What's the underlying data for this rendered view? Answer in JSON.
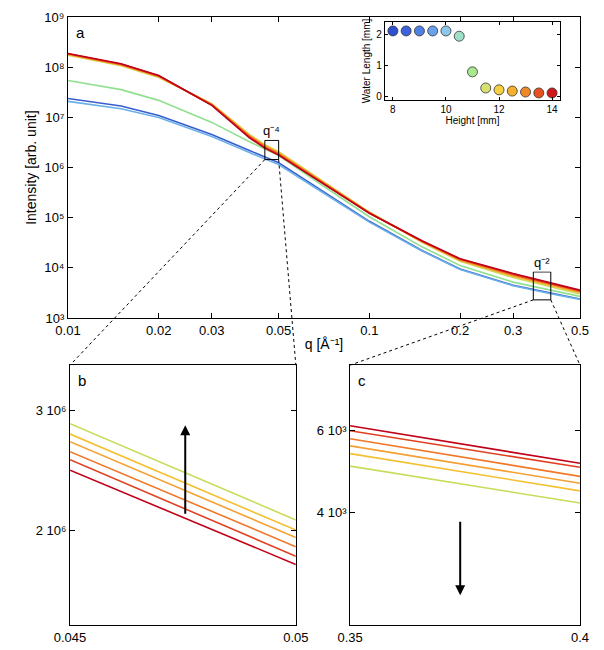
{
  "chart_data": [
    {
      "type": "line",
      "title": "a",
      "log": true,
      "x_label": "q [Å⁻¹]",
      "y_label": "Intensity [arb. unit]",
      "annotations": [
        "q⁻⁴",
        "q⁻²"
      ],
      "x": [
        0.01,
        0.015,
        0.02,
        0.03,
        0.04,
        0.045,
        0.05,
        0.07,
        0.1,
        0.15,
        0.2,
        0.3,
        0.35,
        0.4,
        0.5
      ],
      "xlim": [
        0.01,
        0.5
      ],
      "xticks": [
        0.01,
        0.02,
        0.03,
        0.05,
        0.1,
        0.2,
        0.3,
        0.5
      ],
      "ylim": [
        1000,
        1000000000
      ],
      "yticks": [
        {
          "value": 1000,
          "label": "10³"
        },
        {
          "value": 10000,
          "label": "10⁴"
        },
        {
          "value": 100000,
          "label": "10⁵"
        },
        {
          "value": 1000000,
          "label": "10⁶"
        },
        {
          "value": 10000000,
          "label": "10⁷"
        },
        {
          "value": 100000000,
          "label": "10⁸"
        },
        {
          "value": 1000000000,
          "label": "10⁹"
        }
      ],
      "series": [
        {
          "color": "#3a5fcd",
          "values": [
            24000000,
            17000000,
            11000000,
            4600000,
            2200000,
            1650000,
            1250000,
            340000,
            85000,
            22000,
            9500,
            4500,
            3700,
            3100,
            2400
          ]
        },
        {
          "color": "#6ab0e8",
          "values": [
            21000000,
            15000000,
            10000000,
            4200000,
            2000000,
            1500000,
            1150000,
            320000,
            82000,
            21500,
            9300,
            4400,
            3600,
            3050,
            2350
          ]
        },
        {
          "color": "#90e090",
          "values": [
            55000000,
            36000000,
            22000000,
            8000000,
            3300000,
            2400000,
            1750000,
            440000,
            105000,
            26000,
            11200,
            5200,
            4300,
            3600,
            2700
          ]
        },
        {
          "color": "#c8dc5a",
          "values": [
            175000000,
            108000000,
            63000000,
            19000000,
            4600000,
            2870000,
            2070000,
            540000,
            130000,
            32000,
            13500,
            6400,
            5040,
            4200,
            3000
          ]
        },
        {
          "color": "#f5c030",
          "values": [
            180000000,
            111000000,
            65000000,
            18500000,
            4450000,
            2770000,
            2000000,
            520000,
            128000,
            32500,
            14000,
            6800,
            5360,
            4460,
            3200
          ]
        },
        {
          "color": "#f5a032",
          "values": [
            182000000,
            113000000,
            66000000,
            18200000,
            4350000,
            2700000,
            1950000,
            510000,
            126000,
            33000,
            14300,
            7000,
            5570,
            4630,
            3300
          ]
        },
        {
          "color": "#f07828",
          "values": [
            185000000,
            115000000,
            67000000,
            18000000,
            4200000,
            2610000,
            1890000,
            500000,
            125000,
            33500,
            14600,
            7200,
            5770,
            4790,
            3400
          ]
        },
        {
          "color": "#e04020",
          "values": [
            187000000,
            116000000,
            68000000,
            17800000,
            4100000,
            2540000,
            1830000,
            490000,
            124000,
            34000,
            15000,
            7500,
            6000,
            5010,
            3500
          ]
        },
        {
          "color": "#c00018",
          "values": [
            190000000,
            118000000,
            69000000,
            17500000,
            3950000,
            2450000,
            1780000,
            480000,
            123000,
            34500,
            15200,
            7700,
            6150,
            5110,
            3600
          ]
        }
      ]
    },
    {
      "type": "scatter",
      "x_label": "Height [mm]",
      "y_label": "Water Length [mm]",
      "x": [
        8,
        8.5,
        9,
        9.5,
        10,
        10.5,
        11,
        11.5,
        12,
        12.5,
        13,
        13.5,
        14
      ],
      "values": [
        2.12,
        2.12,
        2.12,
        2.12,
        2.12,
        1.95,
        0.8,
        0.28,
        0.22,
        0.18,
        0.15,
        0.12,
        0.12
      ],
      "colors": [
        "#2e4fd0",
        "#3d62dc",
        "#4f80e6",
        "#6aa0ec",
        "#8cc8ec",
        "#a0e0c8",
        "#a8e890",
        "#d8e070",
        "#f5d040",
        "#f5b030",
        "#f08828",
        "#e85020",
        "#d01818"
      ],
      "marker": "circle",
      "xlim": [
        7.7,
        14.3
      ],
      "xticks": [
        8,
        10,
        12,
        14
      ],
      "ylim": [
        -0.1,
        2.4
      ],
      "yticks": [
        0,
        1,
        2
      ]
    },
    {
      "type": "line",
      "title": "b",
      "log": "y",
      "x": [
        0.045,
        0.05
      ],
      "xlim": [
        0.045,
        0.05
      ],
      "xticks": [
        0.045,
        0.05
      ],
      "ylim": [
        1450000,
        3500000
      ],
      "yticks": [
        {
          "value": 2000000,
          "label": "2 10⁶"
        },
        {
          "value": 3000000,
          "label": "3 10⁶"
        }
      ],
      "series": [
        {
          "color": "#c8dc5a",
          "values": [
            2870000,
            2070000
          ]
        },
        {
          "color": "#f5c030",
          "values": [
            2770000,
            2000000
          ]
        },
        {
          "color": "#f5a032",
          "values": [
            2700000,
            1950000
          ]
        },
        {
          "color": "#f07828",
          "values": [
            2610000,
            1890000
          ]
        },
        {
          "color": "#e04020",
          "values": [
            2540000,
            1830000
          ]
        },
        {
          "color": "#c00018",
          "values": [
            2450000,
            1780000
          ]
        }
      ]
    },
    {
      "type": "line",
      "title": "c",
      "log": "y",
      "x": [
        0.35,
        0.4
      ],
      "xlim": [
        0.35,
        0.4
      ],
      "xticks": [
        0.35,
        0.4
      ],
      "ylim": [
        2300,
        8300
      ],
      "yticks": [
        {
          "value": 4000,
          "label": "4 10³"
        },
        {
          "value": 6000,
          "label": "6 10³"
        }
      ],
      "series": [
        {
          "color": "#c8dc5a",
          "values": [
            5040,
            4200
          ]
        },
        {
          "color": "#f5c030",
          "values": [
            5360,
            4460
          ]
        },
        {
          "color": "#f5a032",
          "values": [
            5570,
            4630
          ]
        },
        {
          "color": "#f07828",
          "values": [
            5770,
            4790
          ]
        },
        {
          "color": "#e04020",
          "values": [
            6000,
            5010
          ]
        },
        {
          "color": "#c00018",
          "values": [
            6150,
            5110
          ]
        }
      ]
    }
  ]
}
